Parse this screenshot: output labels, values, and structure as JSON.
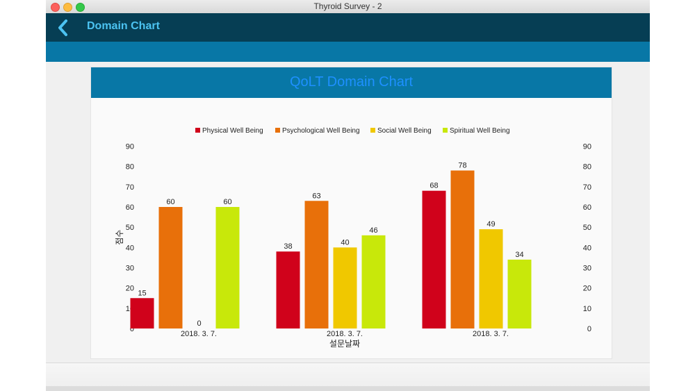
{
  "window": {
    "title": "Thyroid Survey - 2"
  },
  "navbar": {
    "title": "Domain Chart",
    "back_icon": "chevron-left-icon"
  },
  "panel": {
    "title": "QoLT Domain Chart"
  },
  "colors": {
    "navbar_bg": "#063e54",
    "accent_bar": "#0877a6",
    "nav_title": "#4cc3f2",
    "panel_title": "#1e90ff"
  },
  "chart_data": {
    "type": "bar",
    "title": "QoLT Domain Chart",
    "xlabel": "설문날짜",
    "ylabel": "점수",
    "ylim": [
      0,
      90
    ],
    "yticks": [
      0,
      10,
      20,
      30,
      40,
      50,
      60,
      70,
      80,
      90
    ],
    "secondary_y_axis": true,
    "legend_position": "top-center",
    "grid": false,
    "categories": [
      "2018. 3. 7.",
      "2018. 3. 7.",
      "2018. 3. 7."
    ],
    "series": [
      {
        "name": "Physical Well Being",
        "color": "#d0021b",
        "values": [
          15,
          38,
          68
        ]
      },
      {
        "name": "Psychological Well Being",
        "color": "#e8700a",
        "values": [
          60,
          63,
          78
        ]
      },
      {
        "name": "Social Well Being",
        "color": "#f0c800",
        "values": [
          0,
          40,
          49
        ]
      },
      {
        "name": "Spiritual Well Being",
        "color": "#c8e80a",
        "values": [
          60,
          46,
          34
        ]
      }
    ]
  }
}
